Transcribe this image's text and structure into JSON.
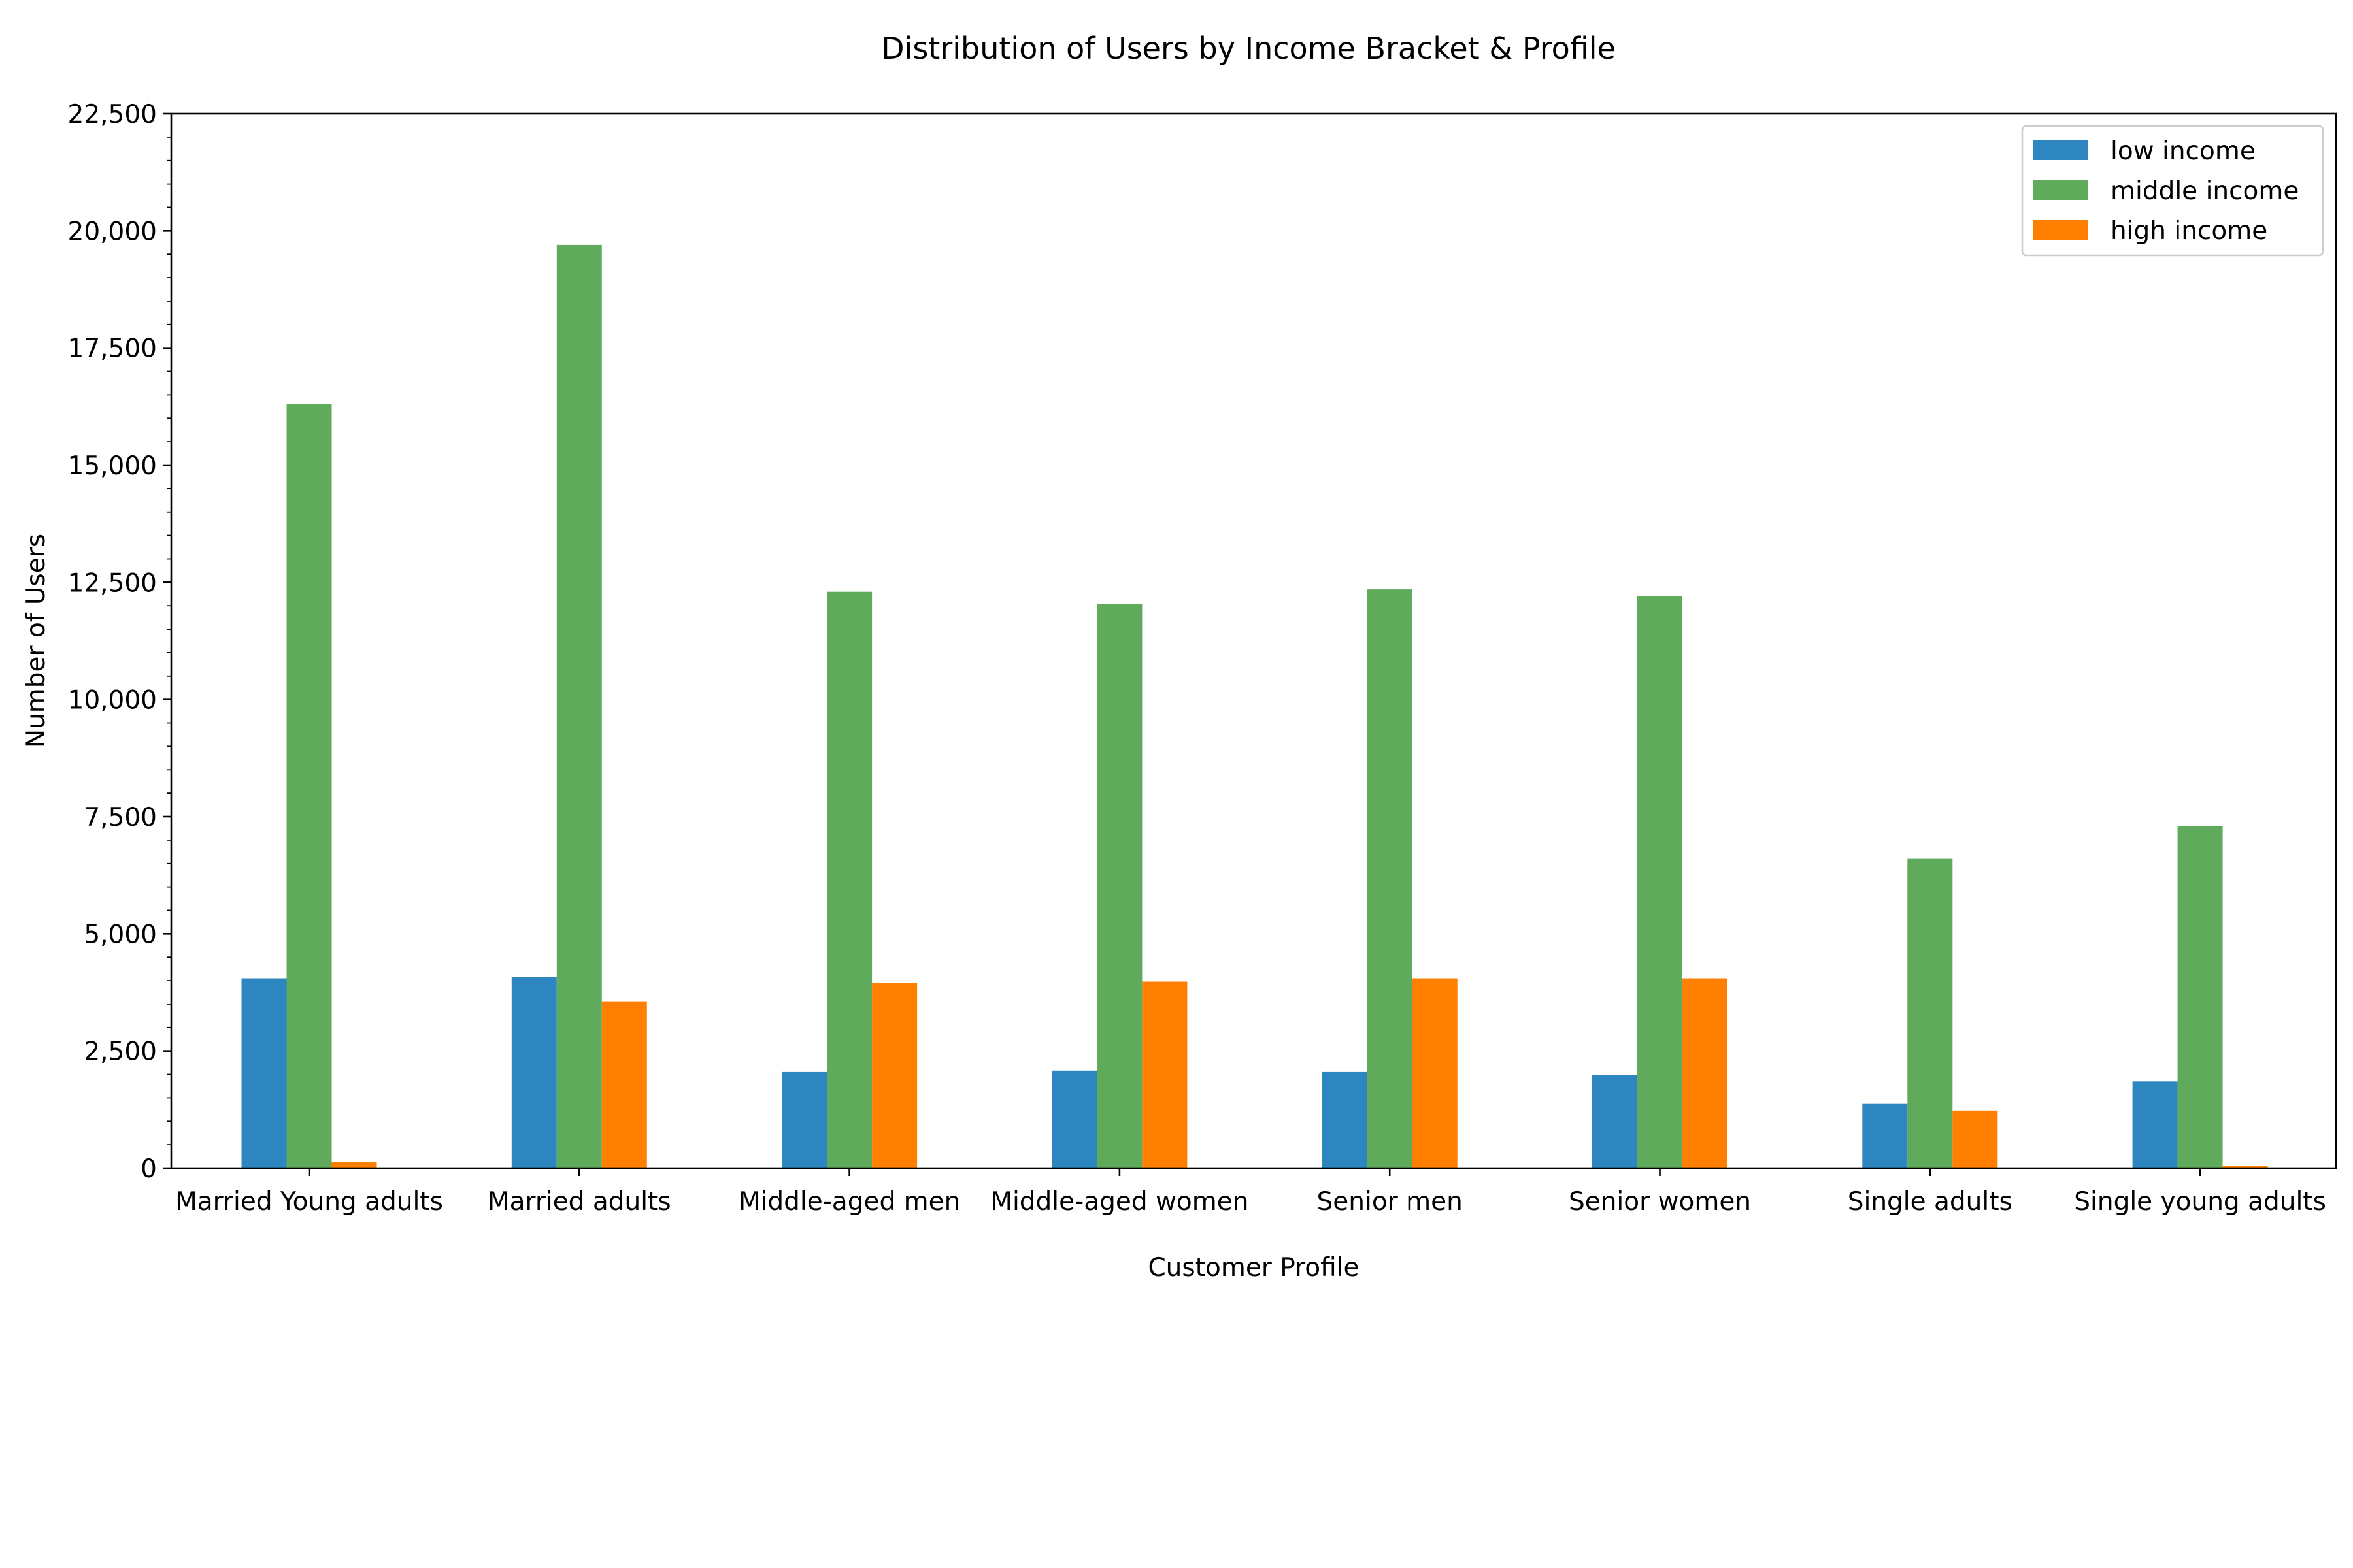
{
  "chart_data": {
    "type": "bar",
    "title": "Distribution of Users by Income Bracket & Profile",
    "xlabel": "Customer Profile",
    "ylabel": "Number of Users",
    "categories": [
      "Married Young adults",
      "Married adults",
      "Middle-aged men",
      "Middle-aged women",
      "Senior men",
      "Senior women",
      "Single adults",
      "Single young adults"
    ],
    "series": [
      {
        "name": "low income",
        "color": "#2e86c1",
        "values": [
          4050,
          4080,
          2050,
          2080,
          2050,
          1980,
          1370,
          1850
        ]
      },
      {
        "name": "middle income",
        "color": "#5fab5b",
        "values": [
          16300,
          19700,
          12300,
          12030,
          12350,
          12200,
          6600,
          7300
        ]
      },
      {
        "name": "high income",
        "color": "#ff8000",
        "values": [
          130,
          3560,
          3950,
          3980,
          4050,
          4050,
          1230,
          50
        ]
      }
    ],
    "ylim": [
      0,
      22500
    ],
    "yticks": [
      "0",
      "2,500",
      "5,000",
      "7,500",
      "10,000",
      "12,500",
      "15,000",
      "17,500",
      "20,000",
      "22,500"
    ],
    "grid": false,
    "legend_position": "top-right"
  }
}
